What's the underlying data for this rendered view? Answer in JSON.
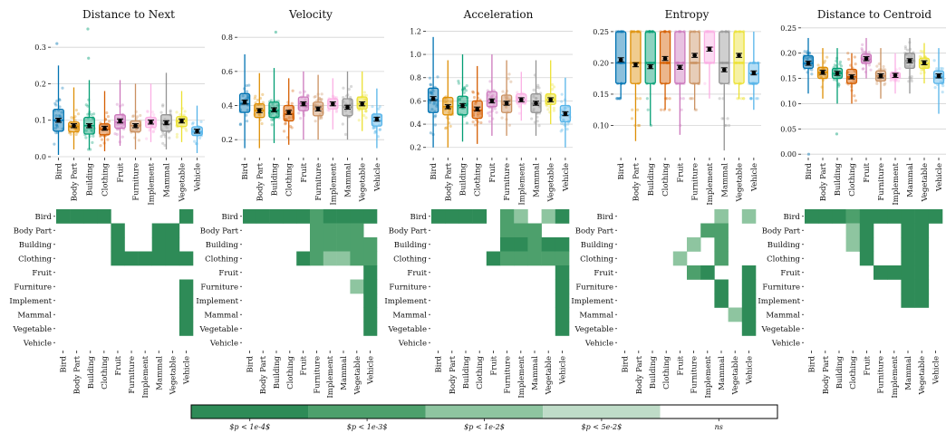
{
  "chart_data": [
    {
      "type": "box",
      "title": "Distance to Next",
      "categories": [
        "Bird",
        "Body Part",
        "Building",
        "Clothing",
        "Fruit",
        "Furniture",
        "Implement",
        "Mammal",
        "Vegetable",
        "Vehicle"
      ],
      "ylim": [
        0,
        0.36
      ],
      "yticks": [
        0,
        0.1,
        0.2,
        0.3
      ],
      "yticklabels": [
        "0.0",
        "0.1",
        "0.2",
        "0.3"
      ],
      "mean": [
        0.1,
        0.085,
        0.085,
        0.078,
        0.098,
        0.085,
        0.095,
        0.093,
        0.098,
        0.07
      ],
      "q1": [
        0.07,
        0.068,
        0.062,
        0.06,
        0.078,
        0.068,
        0.08,
        0.07,
        0.083,
        0.058
      ],
      "median": [
        0.1,
        0.083,
        0.085,
        0.075,
        0.095,
        0.085,
        0.095,
        0.09,
        0.098,
        0.068
      ],
      "q3": [
        0.13,
        0.095,
        0.108,
        0.09,
        0.115,
        0.098,
        0.108,
        0.115,
        0.11,
        0.082
      ],
      "whisker_low": [
        0.005,
        0.02,
        0.02,
        0.015,
        0.03,
        0.02,
        0.04,
        0.02,
        0.04,
        0.01
      ],
      "whisker_high": [
        0.25,
        0.19,
        0.21,
        0.18,
        0.21,
        0.2,
        0.2,
        0.23,
        0.18,
        0.14
      ],
      "outliers": [
        [
          0.31
        ],
        [],
        [
          0.35,
          0.27
        ],
        [],
        [],
        [],
        [],
        [],
        [],
        []
      ]
    },
    {
      "type": "box",
      "title": "Velocity",
      "categories": [
        "Bird",
        "Body Part",
        "Building",
        "Clothing",
        "Fruit",
        "Furniture",
        "Implement",
        "Mammal",
        "Vegetable",
        "Vehicle"
      ],
      "ylim": [
        0.1,
        0.87
      ],
      "yticks": [
        0.2,
        0.4,
        0.6,
        0.8
      ],
      "yticklabels": [
        "0.2",
        "0.4",
        "0.6",
        "0.8"
      ],
      "mean": [
        0.42,
        0.37,
        0.375,
        0.36,
        0.41,
        0.38,
        0.41,
        0.39,
        0.41,
        0.32
      ],
      "q1": [
        0.36,
        0.33,
        0.33,
        0.31,
        0.37,
        0.34,
        0.38,
        0.34,
        0.38,
        0.28
      ],
      "median": [
        0.41,
        0.37,
        0.37,
        0.35,
        0.41,
        0.38,
        0.41,
        0.39,
        0.41,
        0.31
      ],
      "q3": [
        0.47,
        0.41,
        0.42,
        0.4,
        0.45,
        0.42,
        0.44,
        0.44,
        0.45,
        0.35
      ],
      "whisker_low": [
        0.15,
        0.15,
        0.18,
        0.17,
        0.2,
        0.2,
        0.26,
        0.2,
        0.25,
        0.15
      ],
      "whisker_high": [
        0.7,
        0.59,
        0.62,
        0.56,
        0.6,
        0.58,
        0.56,
        0.6,
        0.6,
        0.5
      ],
      "outliers": [
        [],
        [],
        [
          0.83
        ],
        [],
        [],
        [],
        [],
        [],
        [],
        []
      ]
    },
    {
      "type": "box",
      "title": "Acceleration",
      "categories": [
        "Bird",
        "Body Part",
        "Building",
        "Clothing",
        "Fruit",
        "Furniture",
        "Implement",
        "Mammal",
        "Vegetable",
        "Vehicle"
      ],
      "ylim": [
        0.12,
        1.25
      ],
      "yticks": [
        0.2,
        0.4,
        0.6,
        0.8,
        1.0,
        1.2
      ],
      "yticklabels": [
        "0.2",
        "0.4",
        "0.6",
        "0.8",
        "1.0",
        "1.2"
      ],
      "mean": [
        0.62,
        0.55,
        0.56,
        0.53,
        0.6,
        0.58,
        0.61,
        0.58,
        0.61,
        0.49
      ],
      "q1": [
        0.5,
        0.48,
        0.48,
        0.45,
        0.55,
        0.5,
        0.58,
        0.5,
        0.57,
        0.42
      ],
      "median": [
        0.61,
        0.55,
        0.56,
        0.52,
        0.6,
        0.57,
        0.61,
        0.58,
        0.61,
        0.48
      ],
      "q3": [
        0.71,
        0.63,
        0.64,
        0.6,
        0.68,
        0.65,
        0.66,
        0.66,
        0.66,
        0.56
      ],
      "whisker_low": [
        0.2,
        0.2,
        0.25,
        0.23,
        0.3,
        0.3,
        0.43,
        0.3,
        0.4,
        0.2
      ],
      "whisker_high": [
        1.15,
        0.95,
        1.0,
        0.9,
        1.0,
        0.95,
        0.85,
        0.95,
        0.95,
        0.8
      ],
      "outliers": [
        [],
        [],
        [],
        [],
        [],
        [],
        [],
        [],
        [],
        []
      ]
    },
    {
      "type": "box",
      "title": "Entropy",
      "categories": [
        "Bird",
        "Body Part",
        "Building",
        "Clothing",
        "Fruit",
        "Furniture",
        "Implement",
        "Mammal",
        "Vegetable",
        "Vehicle"
      ],
      "ylim": [
        0.05,
        0.26
      ],
      "yticks": [
        0.1,
        0.15,
        0.2,
        0.25
      ],
      "yticklabels": [
        "0.10",
        "0.15",
        "0.20",
        "0.25"
      ],
      "mean": [
        0.205,
        0.197,
        0.194,
        0.207,
        0.193,
        0.212,
        0.222,
        0.189,
        0.212,
        0.184
      ],
      "q1": [
        0.167,
        0.167,
        0.167,
        0.167,
        0.167,
        0.167,
        0.2,
        0.167,
        0.167,
        0.167
      ],
      "median": [
        0.2,
        0.2,
        0.2,
        0.2,
        0.2,
        0.2,
        0.225,
        0.2,
        0.2,
        0.183
      ],
      "q3": [
        0.25,
        0.25,
        0.25,
        0.25,
        0.25,
        0.25,
        0.25,
        0.25,
        0.25,
        0.2
      ],
      "whisker_low": [
        0.143,
        0.075,
        0.1,
        0.125,
        0.085,
        0.125,
        0.143,
        0.06,
        0.143,
        0.125
      ],
      "whisker_high": [
        0.25,
        0.25,
        0.25,
        0.25,
        0.25,
        0.25,
        0.25,
        0.25,
        0.25,
        0.25
      ],
      "outliers": [
        [],
        [],
        [],
        [],
        [],
        [],
        [],
        [],
        [],
        []
      ]
    },
    {
      "type": "box",
      "title": "Distance to Centroid",
      "categories": [
        "Bird",
        "Body Part",
        "Building",
        "Clothing",
        "Fruit",
        "Furniture",
        "Implement",
        "Mammal",
        "Vegetable",
        "Vehicle"
      ],
      "ylim": [
        -0.005,
        0.255
      ],
      "yticks": [
        0,
        0.05,
        0.1,
        0.15,
        0.2,
        0.25
      ],
      "yticklabels": [
        "0.00",
        "0.05",
        "0.10",
        "0.15",
        "0.20",
        "0.25"
      ],
      "mean": [
        0.18,
        0.162,
        0.16,
        0.153,
        0.189,
        0.155,
        0.156,
        0.185,
        0.181,
        0.155
      ],
      "q1": [
        0.17,
        0.15,
        0.15,
        0.14,
        0.18,
        0.145,
        0.15,
        0.17,
        0.17,
        0.14
      ],
      "median": [
        0.18,
        0.162,
        0.16,
        0.153,
        0.188,
        0.155,
        0.156,
        0.185,
        0.18,
        0.153
      ],
      "q3": [
        0.195,
        0.172,
        0.17,
        0.168,
        0.198,
        0.165,
        0.162,
        0.2,
        0.19,
        0.165
      ],
      "whisker_low": [
        0.12,
        0.11,
        0.1,
        0.1,
        0.15,
        0.11,
        0.12,
        0.12,
        0.14,
        0.08
      ],
      "whisker_high": [
        0.23,
        0.21,
        0.21,
        0.2,
        0.23,
        0.21,
        0.2,
        0.23,
        0.22,
        0.21
      ],
      "outliers": [
        [
          0.0
        ],
        [],
        [
          0.04
        ],
        [],
        [],
        [],
        [],
        [],
        [],
        []
      ]
    }
  ],
  "pvalue_matrices": {
    "labels": [
      "Bird",
      "Body Part",
      "Building",
      "Clothing",
      "Fruit",
      "Furniture",
      "Implement",
      "Mammal",
      "Vegetable",
      "Vehicle"
    ],
    "legend_labels": [
      "$p < 1e-4$",
      "$p < 1e-3$",
      "$p < 1e-2$",
      "$p < 5e-2$",
      "ns"
    ],
    "legend_colors": [
      "#2e8b57",
      "#4da06c",
      "#8ec5a0",
      "#bfdcc8",
      "#ffffff"
    ],
    "matrices": [
      [
        "ssssnnnnns",
        "nnnnsnnssn",
        "nnnnsnnssn",
        "nnnnssssss",
        "nnnnnnnnnn",
        "nnnnnnnnns",
        "nnnnnnnnns",
        "nnnnnnnnns",
        "nnnnnnnnns",
        "nnnnnnnnnn"
      ],
      [
        "sssssassss",
        "nnnnnaaaan",
        "nnnnnaaaaa",
        "nnnnsabbaa",
        "nnnnnnnnns",
        "nnnnnnnnbs",
        "nnnnnnnnns",
        "nnnnnnnnns",
        "nnnnnnnnns",
        "nnnnnnnnnn"
      ],
      [
        "ssssnabnbs",
        "nnnnnaaann",
        "nnnnnssass",
        "nnnnsaaaaa",
        "nnnnnnnnns",
        "nnnnnnnnns",
        "nnnnnnnnns",
        "nnnnnnnnns",
        "nnnnnnnnns",
        "nnnnnnnnnn"
      ],
      [
        "nnnnnnnbnb",
        "nnnnnnaann",
        "nnnnnbnann",
        "nnnnbnnann",
        "nnnnnasnns",
        "nnnnnnnsns",
        "nnnnnnnsns",
        "nnnnnnnnbs",
        "nnnnnnnnns",
        "nnnnnnnnnn"
      ],
      [
        "sssassssss",
        "nnnbsnnssn",
        "nnnbsnnssn",
        "nnnnsnnssn",
        "nnnnnssssn",
        "nnnnnnnssn",
        "nnnnnnnssn",
        "nnnnnnnnnn",
        "nnnnnnnnnn",
        "nnnnnnnnnn"
      ]
    ]
  }
}
